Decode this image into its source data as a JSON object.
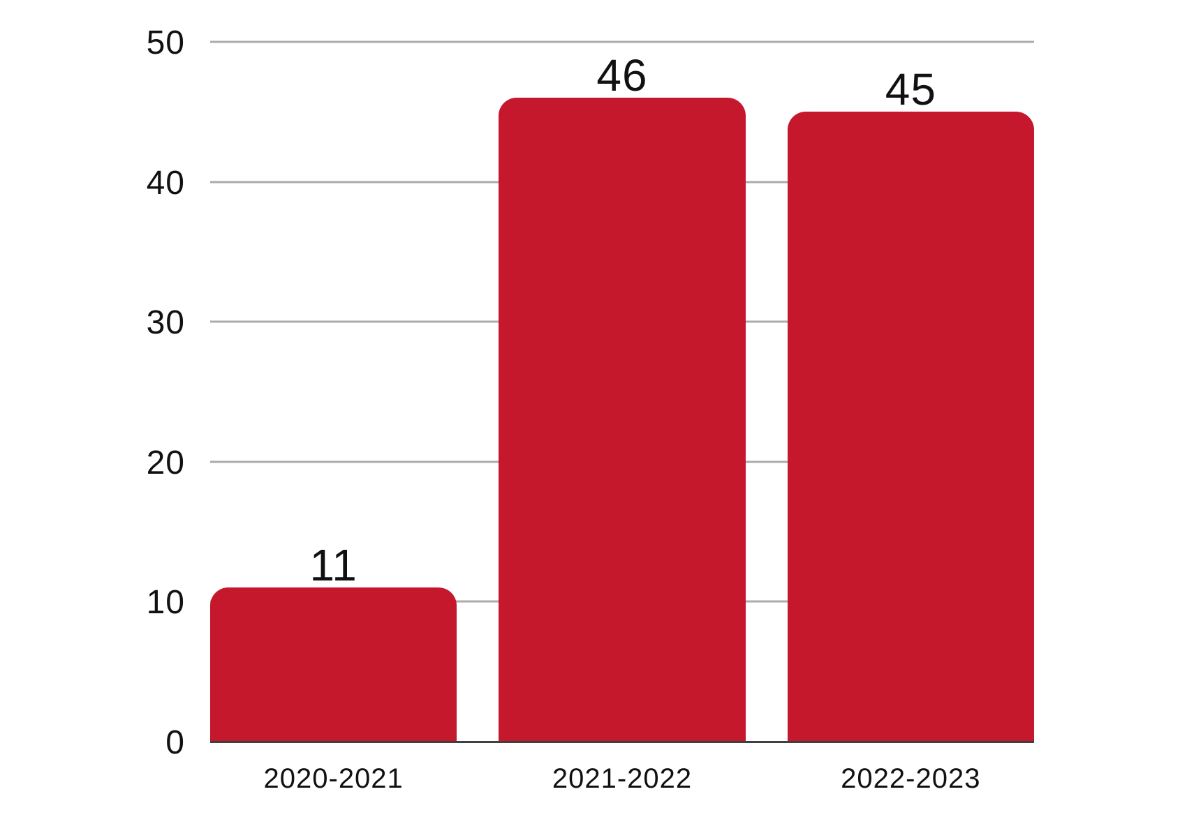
{
  "chart_data": {
    "type": "bar",
    "categories": [
      "2020-2021",
      "2021-2022",
      "2022-2023"
    ],
    "values": [
      11,
      46,
      45
    ],
    "data_labels": [
      "11",
      "46",
      "45"
    ],
    "title": "",
    "xlabel": "",
    "ylabel": "",
    "ylim": [
      0,
      50
    ],
    "yticks": [
      0,
      10,
      20,
      30,
      40,
      50
    ],
    "grid": "horizontal",
    "legend": "none",
    "colors": {
      "bar": "#C6182D",
      "gridline": "#ABABAB",
      "axis_line": "#404040",
      "text": "#111111",
      "background": "#FFFFFF"
    }
  }
}
